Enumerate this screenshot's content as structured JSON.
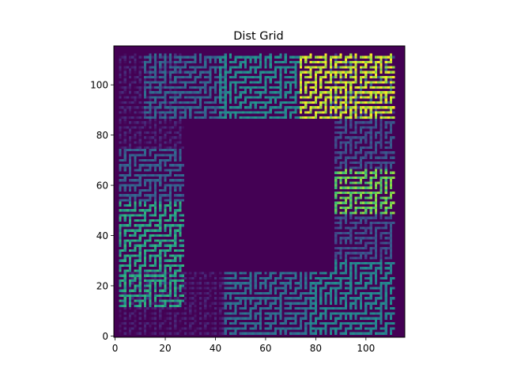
{
  "chart_data": {
    "type": "heatmap",
    "title": "Dist Grid",
    "xlabel": "",
    "ylabel": "",
    "grid_size": [
      116,
      116
    ],
    "xlim": [
      -0.5,
      115.5
    ],
    "ylim": [
      115.5,
      -0.5
    ],
    "x_ticks": [
      0,
      20,
      40,
      60,
      80,
      100
    ],
    "y_ticks": [
      0,
      20,
      40,
      60,
      80,
      100
    ],
    "grid": false,
    "colormap": "viridis",
    "background_color": "#440154",
    "hollow_region": {
      "x_range": [
        28,
        87
      ],
      "y_range": [
        27,
        87
      ]
    },
    "maze_regions": [
      {
        "name": "top-left",
        "x": [
          2,
          44
        ],
        "y": [
          2,
          28
        ],
        "level": 0.08
      },
      {
        "name": "top-center",
        "x": [
          44,
          80
        ],
        "y": [
          2,
          27
        ],
        "level": 0.45
      },
      {
        "name": "top-right",
        "x": [
          78,
          112
        ],
        "y": [
          2,
          32
        ],
        "level": 0.55
      },
      {
        "name": "left-upper",
        "x": [
          2,
          28
        ],
        "y": [
          13,
          55
        ],
        "level": 0.68
      },
      {
        "name": "left-lower",
        "x": [
          2,
          28
        ],
        "y": [
          55,
          76
        ],
        "level": 0.38
      },
      {
        "name": "left-bottom",
        "x": [
          2,
          28
        ],
        "y": [
          76,
          114
        ],
        "level": 0.1
      },
      {
        "name": "right-upper",
        "x": [
          86,
          112
        ],
        "y": [
          32,
          50
        ],
        "level": 0.3
      },
      {
        "name": "right-middle",
        "x": [
          86,
          112
        ],
        "y": [
          50,
          68
        ],
        "level": 0.82
      },
      {
        "name": "right-lower",
        "x": [
          86,
          112
        ],
        "y": [
          68,
          114
        ],
        "level": 0.3
      },
      {
        "name": "bottom-left",
        "x": [
          12,
          45
        ],
        "y": [
          88,
          114
        ],
        "level": 0.4
      },
      {
        "name": "bottom-center",
        "x": [
          42,
          74
        ],
        "y": [
          86,
          114
        ],
        "level": 0.58
      },
      {
        "name": "bottom-right",
        "x": [
          74,
          112
        ],
        "y": [
          88,
          114
        ],
        "level": 0.93
      }
    ]
  }
}
